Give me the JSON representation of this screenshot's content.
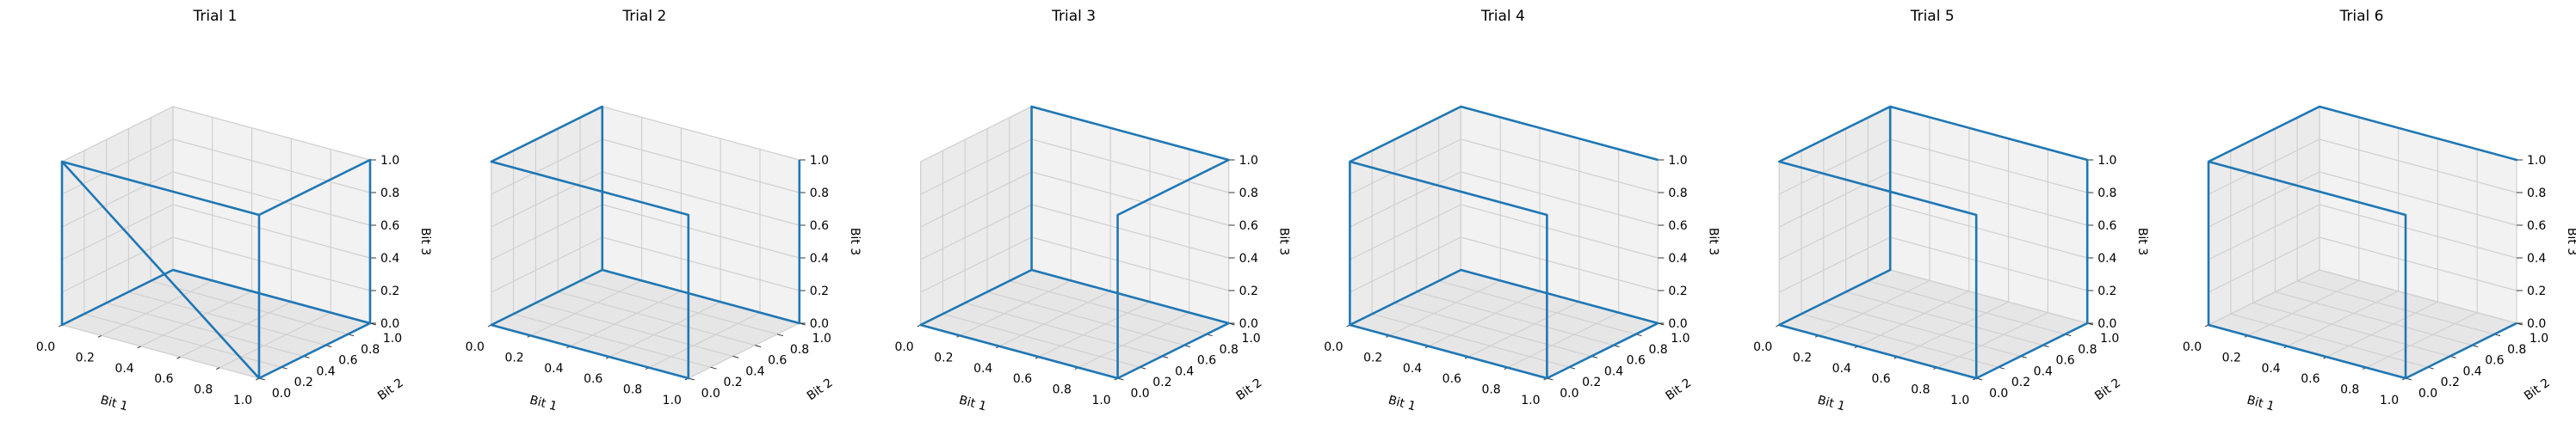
{
  "chart_data": [
    {
      "type": "line3d",
      "title": "Trial 1",
      "xlabel": "Bit 1",
      "ylabel": "Bit 2",
      "zlabel": "Bit 3",
      "xlim": [
        0,
        1
      ],
      "ylim": [
        0,
        1
      ],
      "zlim": [
        0,
        1
      ],
      "xticks": [
        "0.0",
        "0.2",
        "0.4",
        "0.6",
        "0.8",
        "1.0"
      ],
      "yticks": [
        "0.0",
        "0.2",
        "0.4",
        "0.6",
        "0.8",
        "1.0"
      ],
      "zticks": [
        "0.0",
        "0.2",
        "0.4",
        "0.6",
        "0.8",
        "1.0"
      ],
      "grid": true,
      "points": [
        [
          1,
          0,
          0
        ],
        [
          1,
          0,
          1
        ],
        [
          0,
          0,
          1
        ],
        [
          1,
          0,
          0
        ],
        [
          1,
          1,
          0
        ],
        [
          0,
          1,
          0
        ],
        [
          0,
          0,
          0
        ],
        [
          0,
          0,
          1
        ],
        [
          1,
          0,
          1
        ],
        [
          1,
          1,
          1
        ],
        [
          1,
          1,
          0
        ]
      ]
    },
    {
      "type": "line3d",
      "title": "Trial 2",
      "xlabel": "Bit 1",
      "ylabel": "Bit 2",
      "zlabel": "Bit 3",
      "xlim": [
        0,
        1
      ],
      "ylim": [
        0,
        1
      ],
      "zlim": [
        0,
        1
      ],
      "xticks": [
        "0.0",
        "0.2",
        "0.4",
        "0.6",
        "0.8",
        "1.0"
      ],
      "yticks": [
        "0.0",
        "0.2",
        "0.4",
        "0.6",
        "0.8",
        "1.0"
      ],
      "zticks": [
        "0.0",
        "0.2",
        "0.4",
        "0.6",
        "0.8",
        "1.0"
      ],
      "grid": true,
      "points": [
        [
          0,
          1,
          0
        ],
        [
          0,
          1,
          1
        ],
        [
          0,
          0,
          1
        ],
        [
          1,
          0,
          1
        ],
        [
          1,
          0,
          0
        ],
        [
          0,
          0,
          0
        ],
        [
          0,
          1,
          0
        ],
        [
          1,
          1,
          0
        ],
        [
          1,
          1,
          1
        ]
      ]
    },
    {
      "type": "line3d",
      "title": "Trial 3",
      "xlabel": "Bit 1",
      "ylabel": "Bit 2",
      "zlabel": "Bit 3",
      "xlim": [
        0,
        1
      ],
      "ylim": [
        0,
        1
      ],
      "zlim": [
        0,
        1
      ],
      "xticks": [
        "0.0",
        "0.2",
        "0.4",
        "0.6",
        "0.8",
        "1.0"
      ],
      "yticks": [
        "0.0",
        "0.2",
        "0.4",
        "0.6",
        "0.8",
        "1.0"
      ],
      "zticks": [
        "0.0",
        "0.2",
        "0.4",
        "0.6",
        "0.8",
        "1.0"
      ],
      "grid": true,
      "points": [
        [
          1,
          0,
          0
        ],
        [
          1,
          0,
          1
        ],
        [
          1,
          1,
          1
        ],
        [
          0,
          1,
          1
        ],
        [
          0,
          1,
          0
        ],
        [
          1,
          1,
          0
        ],
        [
          1,
          0,
          0
        ],
        [
          0,
          0,
          0
        ],
        [
          0,
          1,
          0
        ]
      ]
    },
    {
      "type": "line3d",
      "title": "Trial 4",
      "xlabel": "Bit 1",
      "ylabel": "Bit 2",
      "zlabel": "Bit 3",
      "xlim": [
        0,
        1
      ],
      "ylim": [
        0,
        1
      ],
      "zlim": [
        0,
        1
      ],
      "xticks": [
        "0.0",
        "0.2",
        "0.4",
        "0.6",
        "0.8",
        "1.0"
      ],
      "yticks": [
        "0.0",
        "0.2",
        "0.4",
        "0.6",
        "0.8",
        "1.0"
      ],
      "zticks": [
        "0.0",
        "0.2",
        "0.4",
        "0.6",
        "0.8",
        "1.0"
      ],
      "grid": true,
      "points": [
        [
          1,
          1,
          1
        ],
        [
          0,
          1,
          1
        ],
        [
          0,
          0,
          1
        ],
        [
          1,
          0,
          1
        ],
        [
          1,
          0,
          0
        ],
        [
          0,
          0,
          0
        ],
        [
          0,
          0,
          1
        ],
        [
          0,
          0,
          0
        ],
        [
          0,
          1,
          0
        ],
        [
          1,
          1,
          0
        ],
        [
          1,
          0,
          0
        ]
      ]
    },
    {
      "type": "line3d",
      "title": "Trial 5",
      "xlabel": "Bit 1",
      "ylabel": "Bit 2",
      "zlabel": "Bit 3",
      "xlim": [
        0,
        1
      ],
      "ylim": [
        0,
        1
      ],
      "zlim": [
        0,
        1
      ],
      "xticks": [
        "0.0",
        "0.2",
        "0.4",
        "0.6",
        "0.8",
        "1.0"
      ],
      "yticks": [
        "0.0",
        "0.2",
        "0.4",
        "0.6",
        "0.8",
        "1.0"
      ],
      "zticks": [
        "0.0",
        "0.2",
        "0.4",
        "0.6",
        "0.8",
        "1.0"
      ],
      "grid": true,
      "points": [
        [
          1,
          0,
          0
        ],
        [
          1,
          0,
          1
        ],
        [
          0,
          0,
          1
        ],
        [
          0,
          1,
          1
        ],
        [
          1,
          1,
          1
        ],
        [
          1,
          1,
          0
        ],
        [
          1,
          0,
          0
        ],
        [
          0,
          0,
          0
        ],
        [
          0,
          1,
          0
        ],
        [
          0,
          1,
          1
        ]
      ]
    },
    {
      "type": "line3d",
      "title": "Trial 6",
      "xlabel": "Bit 1",
      "ylabel": "Bit 2",
      "zlabel": "Bit 3",
      "xlim": [
        0,
        1
      ],
      "ylim": [
        0,
        1
      ],
      "zlim": [
        0,
        1
      ],
      "xticks": [
        "0.0",
        "0.2",
        "0.4",
        "0.6",
        "0.8",
        "1.0"
      ],
      "yticks": [
        "0.0",
        "0.2",
        "0.4",
        "0.6",
        "0.8",
        "1.0"
      ],
      "zticks": [
        "0.0",
        "0.2",
        "0.4",
        "0.6",
        "0.8",
        "1.0"
      ],
      "grid": true,
      "points": [
        [
          1,
          0,
          0
        ],
        [
          1,
          0,
          1
        ],
        [
          0,
          0,
          1
        ],
        [
          0,
          1,
          1
        ],
        [
          1,
          1,
          1
        ],
        [
          0,
          1,
          1
        ],
        [
          0,
          0,
          1
        ],
        [
          0,
          0,
          0
        ],
        [
          1,
          0,
          0
        ],
        [
          1,
          1,
          0
        ]
      ]
    }
  ]
}
